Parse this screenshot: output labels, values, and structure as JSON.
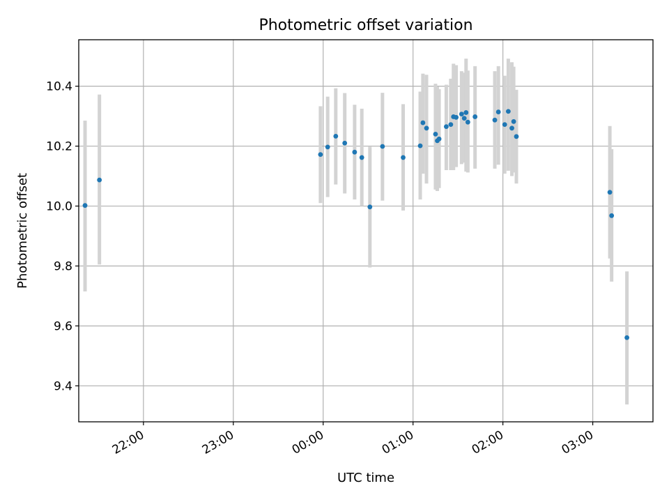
{
  "chart_data": {
    "type": "scatter",
    "title": "Photometric offset variation",
    "xlabel": "UTC time",
    "ylabel": "Photometric offset",
    "x_unit": "UTC time of day (hours after 00:00 on the second day; negative = previous evening)",
    "xlim": [
      -2.72,
      3.67
    ],
    "ylim": [
      9.28,
      10.555
    ],
    "x_ticks": [
      {
        "value": -2.0,
        "label": "22:00"
      },
      {
        "value": -1.0,
        "label": "23:00"
      },
      {
        "value": 0.0,
        "label": "00:00"
      },
      {
        "value": 1.0,
        "label": "01:00"
      },
      {
        "value": 2.0,
        "label": "02:00"
      },
      {
        "value": 3.0,
        "label": "03:00"
      }
    ],
    "y_ticks": [
      {
        "value": 9.4,
        "label": "9.4"
      },
      {
        "value": 9.6,
        "label": "9.6"
      },
      {
        "value": 9.8,
        "label": "9.8"
      },
      {
        "value": 10.0,
        "label": "10.0"
      },
      {
        "value": 10.2,
        "label": "10.2"
      },
      {
        "value": 10.4,
        "label": "10.4"
      }
    ],
    "grid": true,
    "colors": {
      "point": "#1f77b4",
      "errorbar": "#d3d3d3",
      "grid": "#b0b0b0"
    },
    "series": [
      {
        "points": [
          {
            "x": -2.65,
            "y": 10.002,
            "lo": 9.715,
            "hi": 10.285
          },
          {
            "x": -2.49,
            "y": 10.087,
            "lo": 9.805,
            "hi": 10.372
          },
          {
            "x": -0.03,
            "y": 10.172,
            "lo": 10.01,
            "hi": 10.333
          },
          {
            "x": 0.05,
            "y": 10.197,
            "lo": 10.03,
            "hi": 10.365
          },
          {
            "x": 0.14,
            "y": 10.233,
            "lo": 10.072,
            "hi": 10.393
          },
          {
            "x": 0.24,
            "y": 10.21,
            "lo": 10.042,
            "hi": 10.377
          },
          {
            "x": 0.35,
            "y": 10.18,
            "lo": 10.022,
            "hi": 10.338
          },
          {
            "x": 0.43,
            "y": 10.162,
            "lo": 10.0,
            "hi": 10.325
          },
          {
            "x": 0.52,
            "y": 9.997,
            "lo": 9.795,
            "hi": 10.198
          },
          {
            "x": 0.66,
            "y": 10.199,
            "lo": 10.018,
            "hi": 10.378
          },
          {
            "x": 0.89,
            "y": 10.162,
            "lo": 9.985,
            "hi": 10.34
          },
          {
            "x": 1.08,
            "y": 10.201,
            "lo": 10.022,
            "hi": 10.382
          },
          {
            "x": 1.11,
            "y": 10.278,
            "lo": 10.108,
            "hi": 10.442
          },
          {
            "x": 1.15,
            "y": 10.26,
            "lo": 10.075,
            "hi": 10.438
          },
          {
            "x": 1.25,
            "y": 10.24,
            "lo": 10.055,
            "hi": 10.408
          },
          {
            "x": 1.27,
            "y": 10.218,
            "lo": 10.05,
            "hi": 10.398
          },
          {
            "x": 1.29,
            "y": 10.224,
            "lo": 10.06,
            "hi": 10.39
          },
          {
            "x": 1.37,
            "y": 10.265,
            "lo": 10.12,
            "hi": 10.405
          },
          {
            "x": 1.42,
            "y": 10.272,
            "lo": 10.12,
            "hi": 10.425
          },
          {
            "x": 1.45,
            "y": 10.298,
            "lo": 10.12,
            "hi": 10.475
          },
          {
            "x": 1.48,
            "y": 10.296,
            "lo": 10.13,
            "hi": 10.47
          },
          {
            "x": 1.54,
            "y": 10.307,
            "lo": 10.14,
            "hi": 10.45
          },
          {
            "x": 1.57,
            "y": 10.293,
            "lo": 10.145,
            "hi": 10.445
          },
          {
            "x": 1.59,
            "y": 10.312,
            "lo": 10.115,
            "hi": 10.492
          },
          {
            "x": 1.61,
            "y": 10.28,
            "lo": 10.112,
            "hi": 10.452
          },
          {
            "x": 1.69,
            "y": 10.298,
            "lo": 10.125,
            "hi": 10.467
          },
          {
            "x": 1.91,
            "y": 10.287,
            "lo": 10.125,
            "hi": 10.45
          },
          {
            "x": 1.95,
            "y": 10.314,
            "lo": 10.138,
            "hi": 10.467
          },
          {
            "x": 2.02,
            "y": 10.272,
            "lo": 10.108,
            "hi": 10.435
          },
          {
            "x": 2.06,
            "y": 10.316,
            "lo": 10.118,
            "hi": 10.492
          },
          {
            "x": 2.1,
            "y": 10.26,
            "lo": 10.1,
            "hi": 10.48
          },
          {
            "x": 2.12,
            "y": 10.282,
            "lo": 10.112,
            "hi": 10.465
          },
          {
            "x": 2.15,
            "y": 10.232,
            "lo": 10.075,
            "hi": 10.388
          },
          {
            "x": 3.19,
            "y": 10.046,
            "lo": 9.825,
            "hi": 10.267
          },
          {
            "x": 3.21,
            "y": 9.968,
            "lo": 9.748,
            "hi": 10.19
          },
          {
            "x": 3.38,
            "y": 9.561,
            "lo": 9.338,
            "hi": 9.782
          }
        ]
      }
    ]
  }
}
